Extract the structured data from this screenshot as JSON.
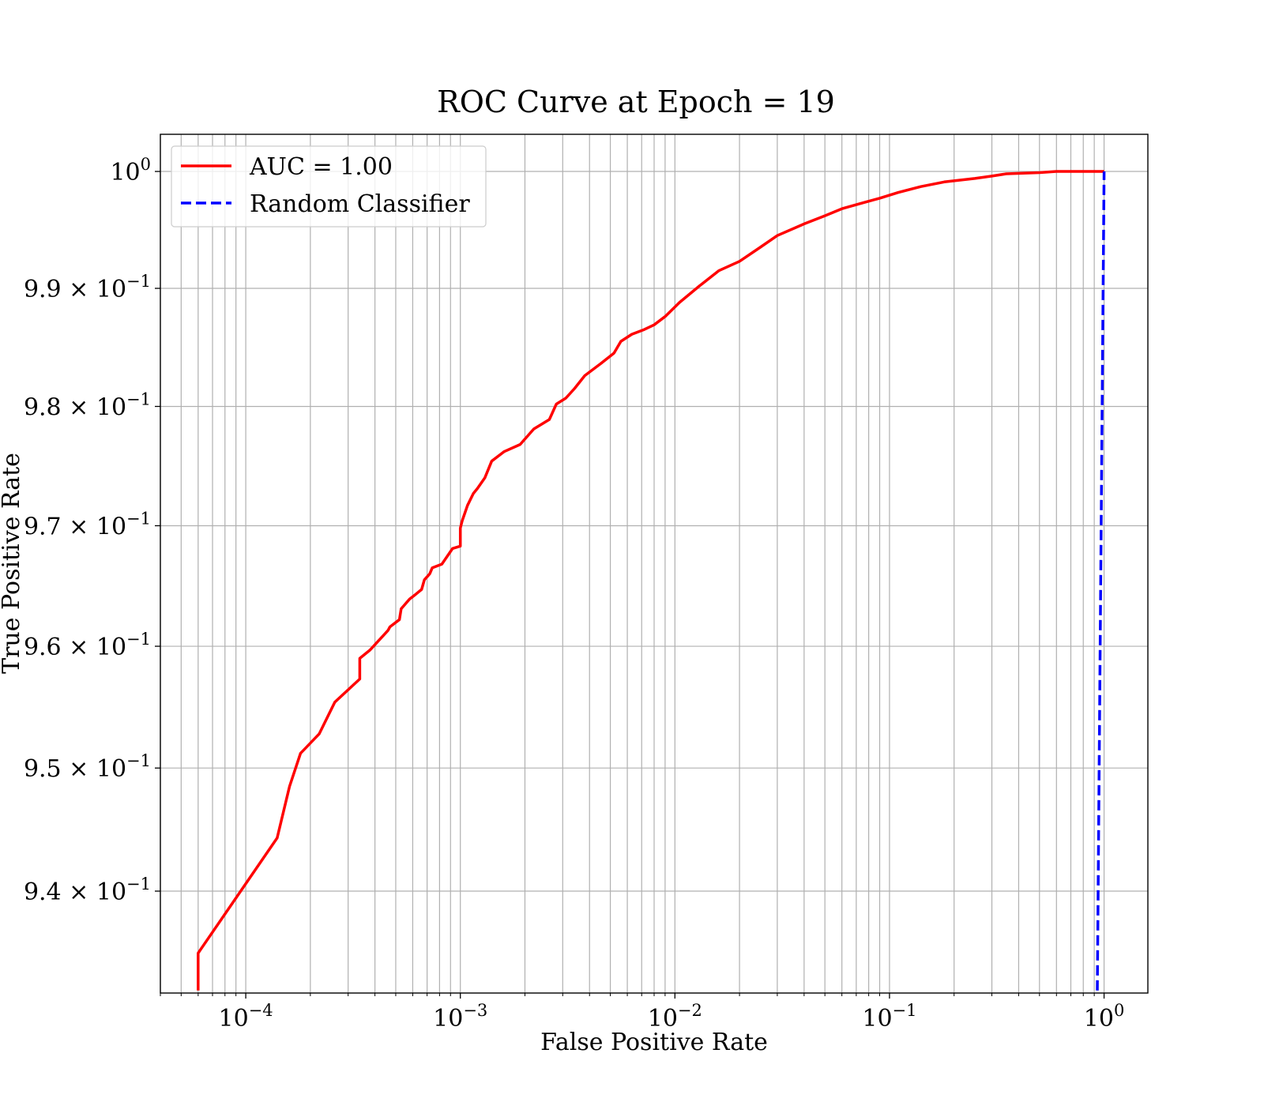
{
  "chart_data": {
    "type": "line",
    "title": "ROC Curve at Epoch = 19",
    "xlabel": "False Positive Rate",
    "ylabel": "True Positive Rate",
    "xscale": "log",
    "yscale": "log",
    "xlim": [
      4e-05,
      1.6
    ],
    "ylim": [
      0.9318,
      1.0032
    ],
    "grid": true,
    "legend_position": "top-left",
    "x_ticks": [
      {
        "value": 0.0001,
        "base": "10",
        "exp": "−4"
      },
      {
        "value": 0.001,
        "base": "10",
        "exp": "−3"
      },
      {
        "value": 0.01,
        "base": "10",
        "exp": "−2"
      },
      {
        "value": 0.1,
        "base": "10",
        "exp": "−1"
      },
      {
        "value": 1,
        "base": "10",
        "exp": "0"
      }
    ],
    "y_ticks": [
      {
        "value": 0.94,
        "base": "9.4 × 10",
        "exp": "−1"
      },
      {
        "value": 0.95,
        "base": "9.5 × 10",
        "exp": "−1"
      },
      {
        "value": 0.96,
        "base": "9.6 × 10",
        "exp": "−1"
      },
      {
        "value": 0.97,
        "base": "9.7 × 10",
        "exp": "−1"
      },
      {
        "value": 0.98,
        "base": "9.8 × 10",
        "exp": "−1"
      },
      {
        "value": 0.99,
        "base": "9.9 × 10",
        "exp": "−1"
      },
      {
        "value": 1.0,
        "base": "10",
        "exp": "0"
      }
    ],
    "series": [
      {
        "name": "AUC = 1.00",
        "color": "#ff0000",
        "style": "solid",
        "x": [
          6e-05,
          6e-05,
          0.00014,
          0.00016,
          0.00018,
          0.00022,
          0.00026,
          0.00034,
          0.00034,
          0.00038,
          0.00046,
          0.00047,
          0.00052,
          0.00053,
          0.00058,
          0.00062,
          0.00066,
          0.00068,
          0.00072,
          0.00074,
          0.00082,
          0.00085,
          0.00092,
          0.001,
          0.001,
          0.00102,
          0.00108,
          0.00115,
          0.0012,
          0.0013,
          0.0014,
          0.0016,
          0.0019,
          0.0022,
          0.0026,
          0.0028,
          0.0031,
          0.0034,
          0.0038,
          0.0045,
          0.0052,
          0.0056,
          0.0063,
          0.0072,
          0.008,
          0.009,
          0.0105,
          0.013,
          0.016,
          0.02,
          0.025,
          0.03,
          0.04,
          0.05,
          0.06,
          0.075,
          0.09,
          0.11,
          0.14,
          0.18,
          0.25,
          0.3,
          0.35,
          0.5,
          0.6,
          0.75,
          1.0
        ],
        "y": [
          0.932,
          0.935,
          0.9443,
          0.9485,
          0.9512,
          0.9528,
          0.9554,
          0.9573,
          0.959,
          0.9597,
          0.9613,
          0.9616,
          0.9622,
          0.9631,
          0.9639,
          0.9643,
          0.9647,
          0.9655,
          0.966,
          0.9665,
          0.9668,
          0.9672,
          0.9681,
          0.9683,
          0.9698,
          0.9704,
          0.9717,
          0.9727,
          0.9731,
          0.974,
          0.9754,
          0.9762,
          0.9768,
          0.9781,
          0.9789,
          0.9802,
          0.9807,
          0.9815,
          0.9826,
          0.9836,
          0.9845,
          0.9855,
          0.9861,
          0.9865,
          0.9869,
          0.9876,
          0.9888,
          0.9902,
          0.9915,
          0.9923,
          0.9935,
          0.9945,
          0.9955,
          0.9962,
          0.9968,
          0.9973,
          0.9977,
          0.9982,
          0.9987,
          0.9991,
          0.9994,
          0.9996,
          0.9998,
          0.9999,
          1.0,
          1.0,
          1.0
        ]
      },
      {
        "name": "Random Classifier",
        "color": "#0000ff",
        "style": "dashed",
        "x": [
          0.93,
          1.0
        ],
        "y": [
          0.932,
          1.0
        ]
      }
    ]
  }
}
